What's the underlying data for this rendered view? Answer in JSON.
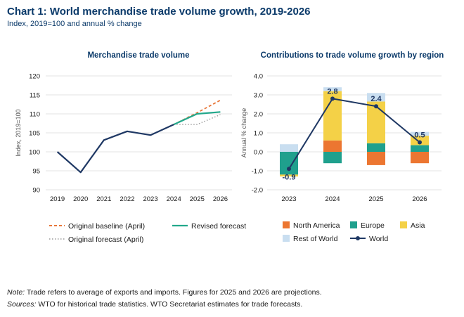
{
  "title": "Chart 1: World merchandise trade volume growth, 2019-2026",
  "subtitle": "Index, 2019=100 and annual % change",
  "notes": {
    "note_lead": "Note:",
    "note_text": " Trade refers to average of exports and imports. Figures for 2025 and 2026 are projections.",
    "sources_lead": "Sources:",
    "sources_text": " WTO for historical trade statistics. WTO Secretariat estimates for trade forecasts."
  },
  "colors": {
    "navy": "#1f3864",
    "baseline": "#e8773a",
    "revised": "#22a88b",
    "original_forecast": "#9a9a9a",
    "north_america": "#ec7631",
    "europe": "#1fa08d",
    "asia": "#f4d147",
    "rest_of_world": "#c9def0",
    "grid": "#e3e3e3"
  },
  "chart_data": [
    {
      "type": "line",
      "title": "Merchandise trade volume",
      "ylabel": "Index, 2019=100",
      "xlabel": "",
      "ylim": [
        90,
        120
      ],
      "yticks": [
        90,
        95,
        100,
        105,
        110,
        115,
        120
      ],
      "x": [
        "2019",
        "2020",
        "2021",
        "2022",
        "2023",
        "2024",
        "2025",
        "2026"
      ],
      "grid": true,
      "legend_position": "bottom",
      "series": [
        {
          "name": "Original baseline (April)",
          "style": "dashed",
          "color": "#e8773a",
          "points": [
            [
              "2024",
              107.2
            ],
            [
              "2025",
              110.3
            ],
            [
              "2026",
              113.6
            ]
          ]
        },
        {
          "name": "Revised forecast",
          "style": "solid",
          "color": "#22a88b",
          "points": [
            [
              "2024",
              107.2
            ],
            [
              "2025",
              110.0
            ],
            [
              "2026",
              110.5
            ]
          ]
        },
        {
          "name": "Original forecast (April)",
          "style": "dotted",
          "color": "#9a9a9a",
          "points": [
            [
              "2024",
              107.2
            ],
            [
              "2025",
              107.2
            ],
            [
              "2026",
              109.8
            ]
          ]
        },
        {
          "name": "",
          "style": "solid",
          "color": "#1f3864",
          "points": [
            [
              "2019",
              100
            ],
            [
              "2020",
              94.6
            ],
            [
              "2021",
              103.1
            ],
            [
              "2022",
              105.4
            ],
            [
              "2023",
              104.4
            ],
            [
              "2024",
              107.2
            ]
          ]
        }
      ]
    },
    {
      "type": "bar",
      "stacked": true,
      "title": "Contributions to trade volume growth by region",
      "ylabel": "Annual % change",
      "xlabel": "",
      "ylim": [
        -2.0,
        4.0
      ],
      "yticks": [
        -2.0,
        -1.0,
        0.0,
        1.0,
        2.0,
        3.0,
        4.0
      ],
      "categories": [
        "2023",
        "2024",
        "2025",
        "2026"
      ],
      "grid": true,
      "legend_position": "bottom",
      "series": [
        {
          "name": "North America",
          "color": "#ec7631",
          "values": [
            0.0,
            0.6,
            -0.7,
            -0.6
          ]
        },
        {
          "name": "Europe",
          "color": "#1fa08d",
          "values": [
            -1.2,
            -0.6,
            0.45,
            0.35
          ]
        },
        {
          "name": "Asia",
          "color": "#f4d147",
          "values": [
            -0.1,
            2.6,
            2.2,
            0.5
          ]
        },
        {
          "name": "Rest of World",
          "color": "#c9def0",
          "values": [
            0.4,
            0.2,
            0.45,
            0.2
          ]
        }
      ],
      "line": {
        "name": "World",
        "color": "#1f3864",
        "values": [
          -0.9,
          2.8,
          2.4,
          0.5
        ]
      },
      "data_labels": [
        "-0.9",
        "2.8",
        "2.4",
        "0.5"
      ]
    }
  ]
}
